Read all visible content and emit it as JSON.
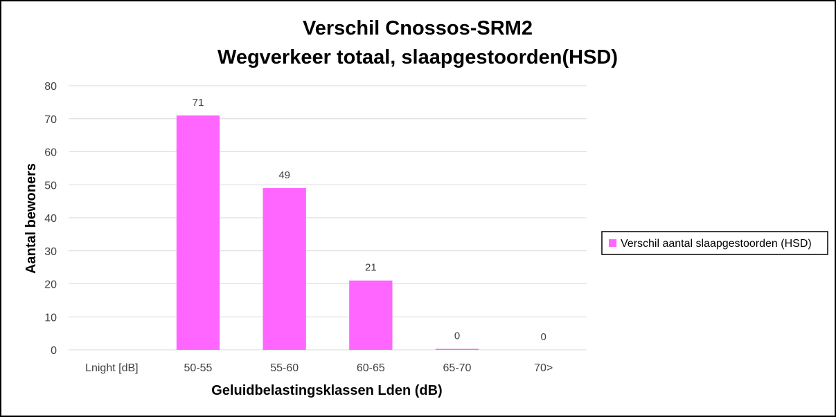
{
  "chart_data": {
    "type": "bar",
    "title_line1": "Verschil Cnossos-SRM2",
    "title_line2": "Wegverkeer totaal, slaapgestoorden(HSD)",
    "xlabel": "Geluidbelastingsklassen Lden (dB)",
    "ylabel": "Aantal bewoners",
    "categories": [
      "Lnight [dB]",
      "50-55",
      "55-60",
      "60-65",
      "65-70",
      "70>"
    ],
    "series": [
      {
        "name": "Verschil aantal slaapgestoorden (HSD)",
        "values": [
          null,
          71,
          49,
          21,
          0.3,
          0
        ],
        "data_labels": [
          "",
          "71",
          "49",
          "21",
          "0",
          "0"
        ],
        "color": "#ff66ff"
      }
    ],
    "ylim": [
      0,
      80
    ],
    "yticks": [
      0,
      10,
      20,
      30,
      40,
      50,
      60,
      70,
      80
    ],
    "grid": true,
    "legend_position": "right"
  }
}
